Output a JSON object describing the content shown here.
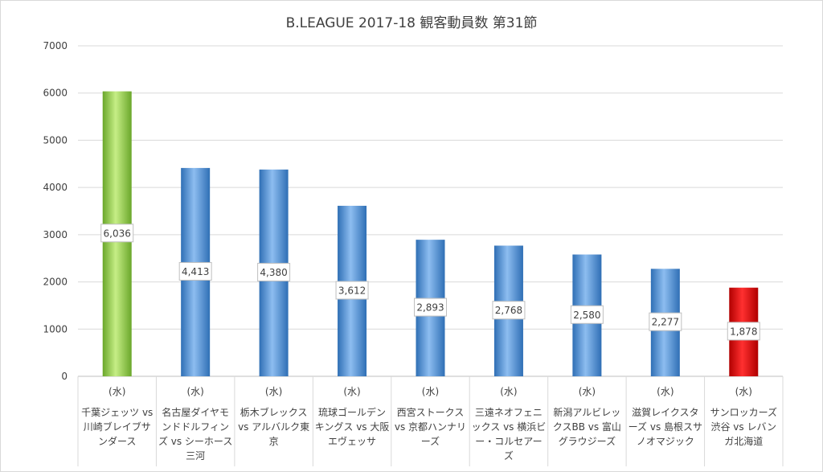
{
  "chart_data": {
    "type": "bar",
    "title": "B.LEAGUE 2017-18 観客動員数 第31節",
    "ylim": [
      0,
      7000
    ],
    "yticks": [
      0,
      1000,
      2000,
      3000,
      4000,
      5000,
      6000,
      7000
    ],
    "grid": true,
    "legend": "none",
    "categories": [
      {
        "day": "(水)",
        "name": "千葉ジェッツ vs 川崎ブレイブサンダース"
      },
      {
        "day": "(水)",
        "name": "名古屋ダイヤモンドドルフィンズ vs シーホース三河"
      },
      {
        "day": "(水)",
        "name": "栃木ブレックス vs アルバルク東京"
      },
      {
        "day": "(水)",
        "name": "琉球ゴールデンキングス vs 大阪エヴェッサ"
      },
      {
        "day": "(水)",
        "name": "西宮ストークス vs 京都ハンナリーズ"
      },
      {
        "day": "(水)",
        "name": "三遠ネオフェニックス vs 横浜ビー・コルセアーズ"
      },
      {
        "day": "(水)",
        "name": "新潟アルビレックスBB vs 富山グラウジーズ"
      },
      {
        "day": "(水)",
        "name": "滋賀レイクスターズ vs 島根スサノオマジック"
      },
      {
        "day": "(水)",
        "name": "サンロッカーズ渋谷 vs レバンガ北海道"
      }
    ],
    "values": [
      6036,
      4413,
      4380,
      3612,
      2893,
      2768,
      2580,
      2277,
      1878
    ],
    "value_labels": [
      "6,036",
      "4,413",
      "4,380",
      "3,612",
      "2,893",
      "2,768",
      "2,580",
      "2,277",
      "1,878"
    ],
    "bar_colors": [
      "#8dc63f",
      "#4f8fd6",
      "#4f8fd6",
      "#4f8fd6",
      "#4f8fd6",
      "#4f8fd6",
      "#4f8fd6",
      "#4f8fd6",
      "#e00000"
    ]
  }
}
